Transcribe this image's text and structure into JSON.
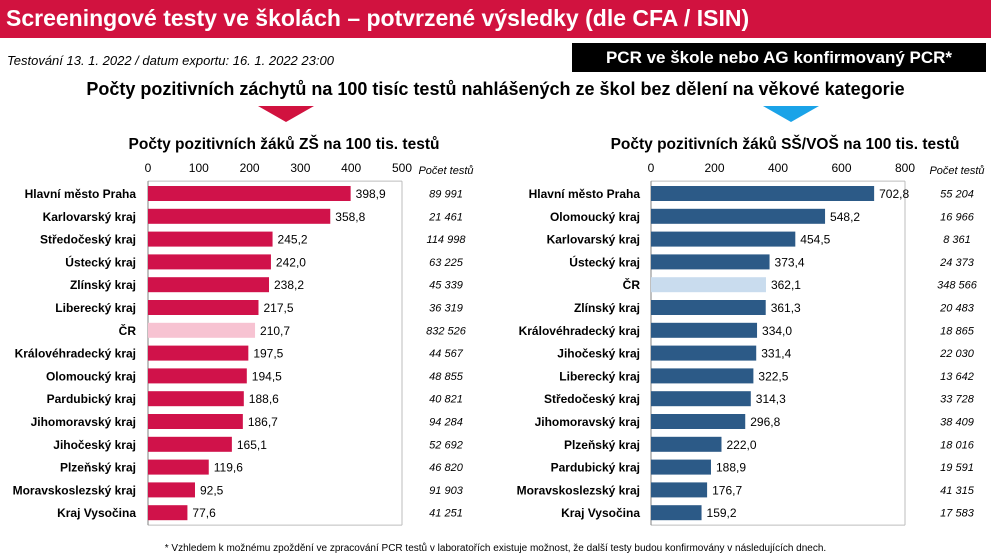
{
  "header": {
    "title": "Screeningové testy ve školách – potvrzené výsledky (dle CFA / ISIN)"
  },
  "date_line": "Testování 13. 1. 2022 / datum exportu: 16. 1. 2022 23:00",
  "badge": "PCR ve škole nebo AG konfirmovaný PCR*",
  "main_heading": "Počty pozitivních záchytů na 100 tisíc testů nahlášených ze škol bez dělení na věkové kategorie",
  "footnote": "* Vzhledem k možnému zpoždění ve zpracování PCR testů v laboratořích existuje možnost, že další testy budou konfirmovány v následujících dnech.",
  "colors": {
    "header_red": "#d1123f",
    "zs_bar": "#d0124a",
    "zs_highlight": "#f7c3d2",
    "ss_bar": "#2c5a87",
    "ss_highlight": "#c9dcee",
    "arrow_blue": "#1aa3e8"
  },
  "chart_data": [
    {
      "type": "bar",
      "orientation": "horizontal",
      "title": "Počty pozitivních žáků ZŠ na 100 tis. testů",
      "xlim": [
        0,
        500
      ],
      "ticks": [
        "0",
        "100",
        "200",
        "300",
        "400",
        "500"
      ],
      "count_header": "Počet testů",
      "highlight": "ČR",
      "categories": [
        "Hlavní město Praha",
        "Karlovarský kraj",
        "Středočeský kraj",
        "Ústecký kraj",
        "Zlínský kraj",
        "Liberecký kraj",
        "ČR",
        "Královéhradecký kraj",
        "Olomoucký kraj",
        "Pardubický kraj",
        "Jihomoravský kraj",
        "Jihočeský kraj",
        "Plzeňský kraj",
        "Moravskoslezský kraj",
        "Kraj Vysočina"
      ],
      "values": [
        398.9,
        358.8,
        245.2,
        242.0,
        238.2,
        217.5,
        210.7,
        197.5,
        194.5,
        188.6,
        186.7,
        165.1,
        119.6,
        92.5,
        77.6
      ],
      "value_labels": [
        "398,9",
        "358,8",
        "245,2",
        "242,0",
        "238,2",
        "217,5",
        "210,7",
        "197,5",
        "194,5",
        "188,6",
        "186,7",
        "165,1",
        "119,6",
        "92,5",
        "77,6"
      ],
      "counts": [
        "89 991",
        "21 461",
        "114 998",
        "63 225",
        "45 339",
        "36 319",
        "832 526",
        "44 567",
        "48 855",
        "40 821",
        "94 284",
        "52 692",
        "46 820",
        "91 903",
        "41 251"
      ]
    },
    {
      "type": "bar",
      "orientation": "horizontal",
      "title": "Počty pozitivních žáků SŠ/VOŠ na 100 tis. testů",
      "xlim": [
        0,
        800
      ],
      "ticks": [
        "0",
        "200",
        "400",
        "600",
        "800"
      ],
      "count_header": "Počet testů",
      "highlight": "ČR",
      "categories": [
        "Hlavní město Praha",
        "Olomoucký kraj",
        "Karlovarský kraj",
        "Ústecký kraj",
        "ČR",
        "Zlínský kraj",
        "Královéhradecký kraj",
        "Jihočeský kraj",
        "Liberecký kraj",
        "Středočeský kraj",
        "Jihomoravský kraj",
        "Plzeňský kraj",
        "Pardubický kraj",
        "Moravskoslezský kraj",
        "Kraj Vysočina"
      ],
      "values": [
        702.8,
        548.2,
        454.5,
        373.4,
        362.1,
        361.3,
        334.0,
        331.4,
        322.5,
        314.3,
        296.8,
        222.0,
        188.9,
        176.7,
        159.2
      ],
      "value_labels": [
        "702,8",
        "548,2",
        "454,5",
        "373,4",
        "362,1",
        "361,3",
        "334,0",
        "331,4",
        "322,5",
        "314,3",
        "296,8",
        "222,0",
        "188,9",
        "176,7",
        "159,2"
      ],
      "counts": [
        "55 204",
        "16 966",
        "8 361",
        "24 373",
        "348 566",
        "20 483",
        "18 865",
        "22 030",
        "13 642",
        "33 728",
        "38 409",
        "18 016",
        "19 591",
        "41 315",
        "17 583"
      ]
    }
  ]
}
